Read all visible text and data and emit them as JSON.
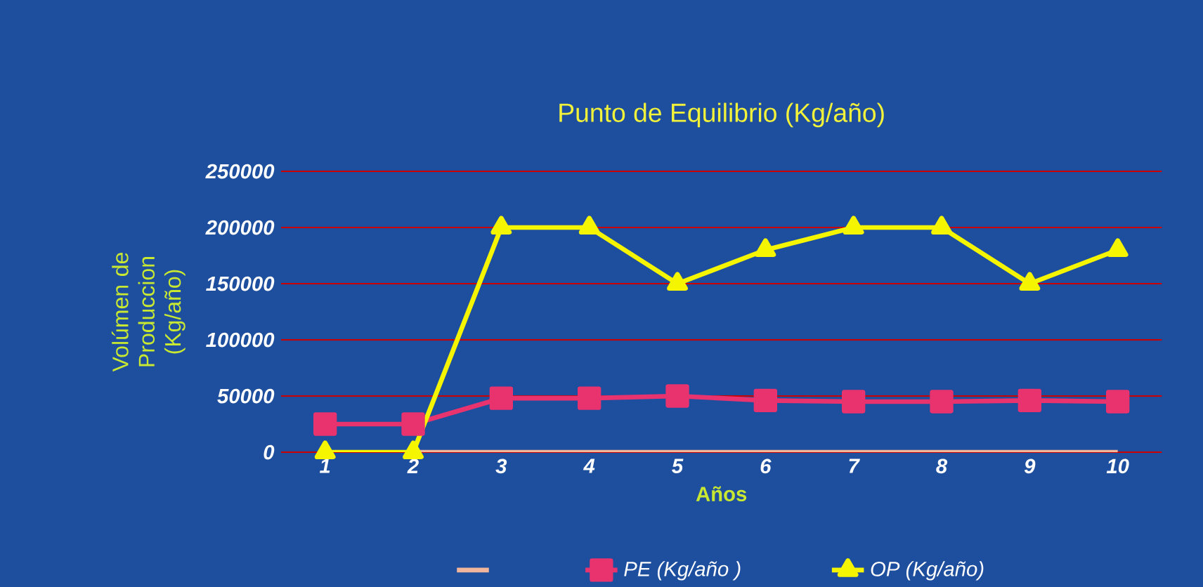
{
  "chart_data": {
    "type": "line",
    "title": "Punto de Equilibrio (Kg/año)",
    "xlabel": "Años",
    "ylabel": "Volúmen de Produccion (Kg/año)",
    "categories": [
      "1",
      "2",
      "3",
      "4",
      "5",
      "6",
      "7",
      "8",
      "9",
      "10"
    ],
    "series": [
      {
        "color": "#f0b59a",
        "marker": "none",
        "values": [
          null,
          0,
          0,
          0,
          0,
          0,
          0,
          0,
          0,
          0
        ]
      },
      {
        "name": "PE (Kg/año )",
        "color": "#e8336e",
        "marker": "square",
        "values": [
          25000,
          25000,
          48000,
          48000,
          50000,
          46000,
          45000,
          45000,
          46000,
          45000
        ]
      },
      {
        "name": "OP (Kg/año)",
        "color": "#f5f500",
        "marker": "triangle",
        "values": [
          0,
          0,
          200000,
          200000,
          150000,
          180000,
          200000,
          200000,
          150000,
          180000
        ]
      }
    ],
    "ylim": [
      0,
      250000
    ],
    "yticks": [
      0,
      50000,
      100000,
      150000,
      200000,
      250000
    ],
    "grid": "y",
    "legend": "bottom"
  }
}
